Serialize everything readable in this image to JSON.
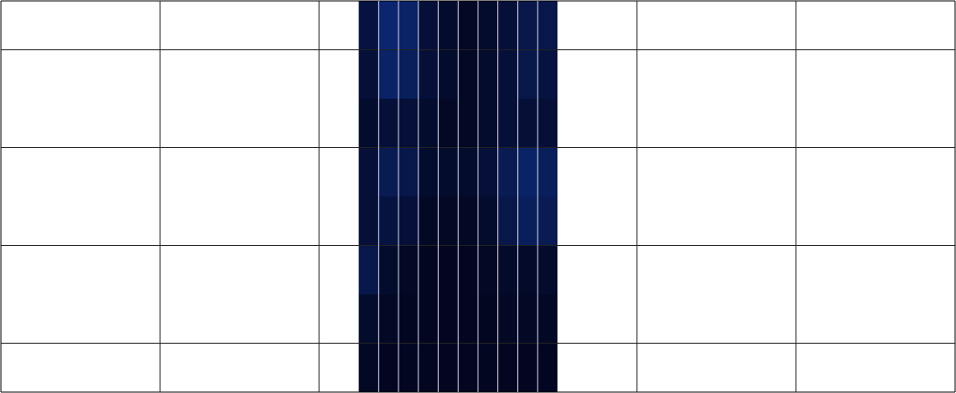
{
  "chart_data": {
    "type": "heatmap",
    "xlim": [
      0,
      6
    ],
    "xticks": [
      1,
      2,
      3,
      4,
      5
    ],
    "ylim": [
      0,
      4
    ],
    "yticks": [
      0.5,
      1.5,
      2.5,
      3.5
    ],
    "grid": true,
    "tick_labels": false,
    "x_edges": [
      2.25,
      2.375,
      2.5,
      2.625,
      2.75,
      2.875,
      3.0,
      3.125,
      3.25,
      3.375,
      3.5
    ],
    "y_edges": [
      0,
      0.5,
      1,
      1.5,
      2,
      2.5,
      3,
      3.5,
      4
    ],
    "zlim": [
      0,
      1
    ],
    "values": [
      [
        0.1,
        0.05,
        0.05,
        0.05,
        0.05,
        0.05,
        0.05,
        0.05,
        0.05,
        0.05
      ],
      [
        0.2,
        0.1,
        0.05,
        0.05,
        0.05,
        0.05,
        0.05,
        0.1,
        0.1,
        0.1
      ],
      [
        0.5,
        0.2,
        0.1,
        0.05,
        0.05,
        0.05,
        0.1,
        0.15,
        0.15,
        0.2
      ],
      [
        0.3,
        0.4,
        0.3,
        0.1,
        0.1,
        0.1,
        0.2,
        0.5,
        0.7,
        0.6
      ],
      [
        0.3,
        0.6,
        0.5,
        0.2,
        0.2,
        0.2,
        0.3,
        0.6,
        0.8,
        0.7
      ],
      [
        0.2,
        0.3,
        0.3,
        0.2,
        0.1,
        0.1,
        0.2,
        0.3,
        0.3,
        0.3
      ],
      [
        0.3,
        0.8,
        0.7,
        0.3,
        0.2,
        0.1,
        0.2,
        0.3,
        0.5,
        0.4
      ],
      [
        0.4,
        0.9,
        0.8,
        0.3,
        0.2,
        0.1,
        0.2,
        0.3,
        0.5,
        0.5
      ]
    ]
  }
}
